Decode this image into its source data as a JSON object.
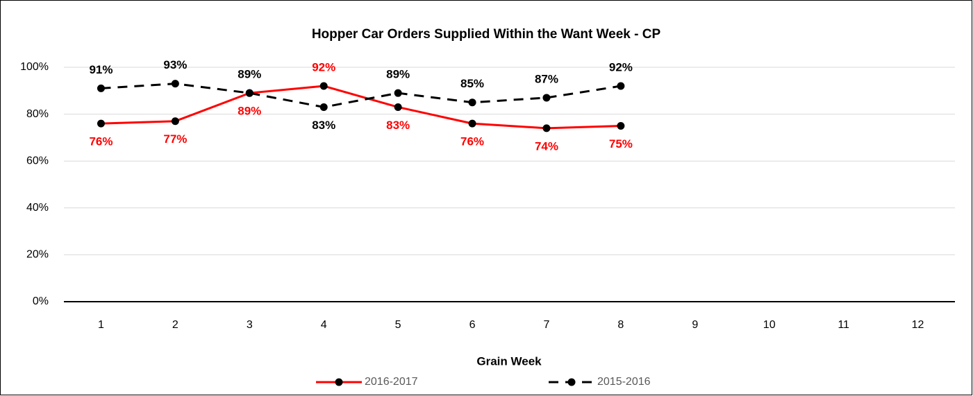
{
  "chart_data": {
    "type": "line",
    "title": "Hopper Car Orders Supplied Within the Want Week - CP",
    "x_label": "Grain Week",
    "categories": [
      "1",
      "2",
      "3",
      "4",
      "5",
      "6",
      "7",
      "8",
      "9",
      "10",
      "11",
      "12"
    ],
    "series": [
      {
        "name": "2016-2017",
        "color": "#ff0000",
        "line_style": "solid",
        "values": [
          76,
          77,
          89,
          92,
          83,
          76,
          74,
          75,
          null,
          null,
          null,
          null
        ],
        "value_labels": [
          "76%",
          "77%",
          "89%",
          "92%",
          "83%",
          "76%",
          "74%",
          "75%",
          null,
          null,
          null,
          null
        ]
      },
      {
        "name": "2015-2016",
        "color": "#000000",
        "line_style": "dashed",
        "values": [
          91,
          93,
          89,
          83,
          89,
          85,
          87,
          92,
          null,
          null,
          null,
          null
        ],
        "value_labels": [
          "91%",
          "93%",
          "89%",
          "83%",
          "89%",
          "85%",
          "87%",
          "92%",
          null,
          null,
          null,
          null
        ]
      }
    ],
    "ylim": [
      0,
      100
    ],
    "yticks": [
      {
        "value": 0,
        "label": "0%"
      },
      {
        "value": 20,
        "label": "20%"
      },
      {
        "value": 40,
        "label": "40%"
      },
      {
        "value": 60,
        "label": "60%"
      },
      {
        "value": 80,
        "label": "80%"
      },
      {
        "value": 100,
        "label": "100%"
      }
    ],
    "grid": true,
    "legend": "bottom"
  }
}
